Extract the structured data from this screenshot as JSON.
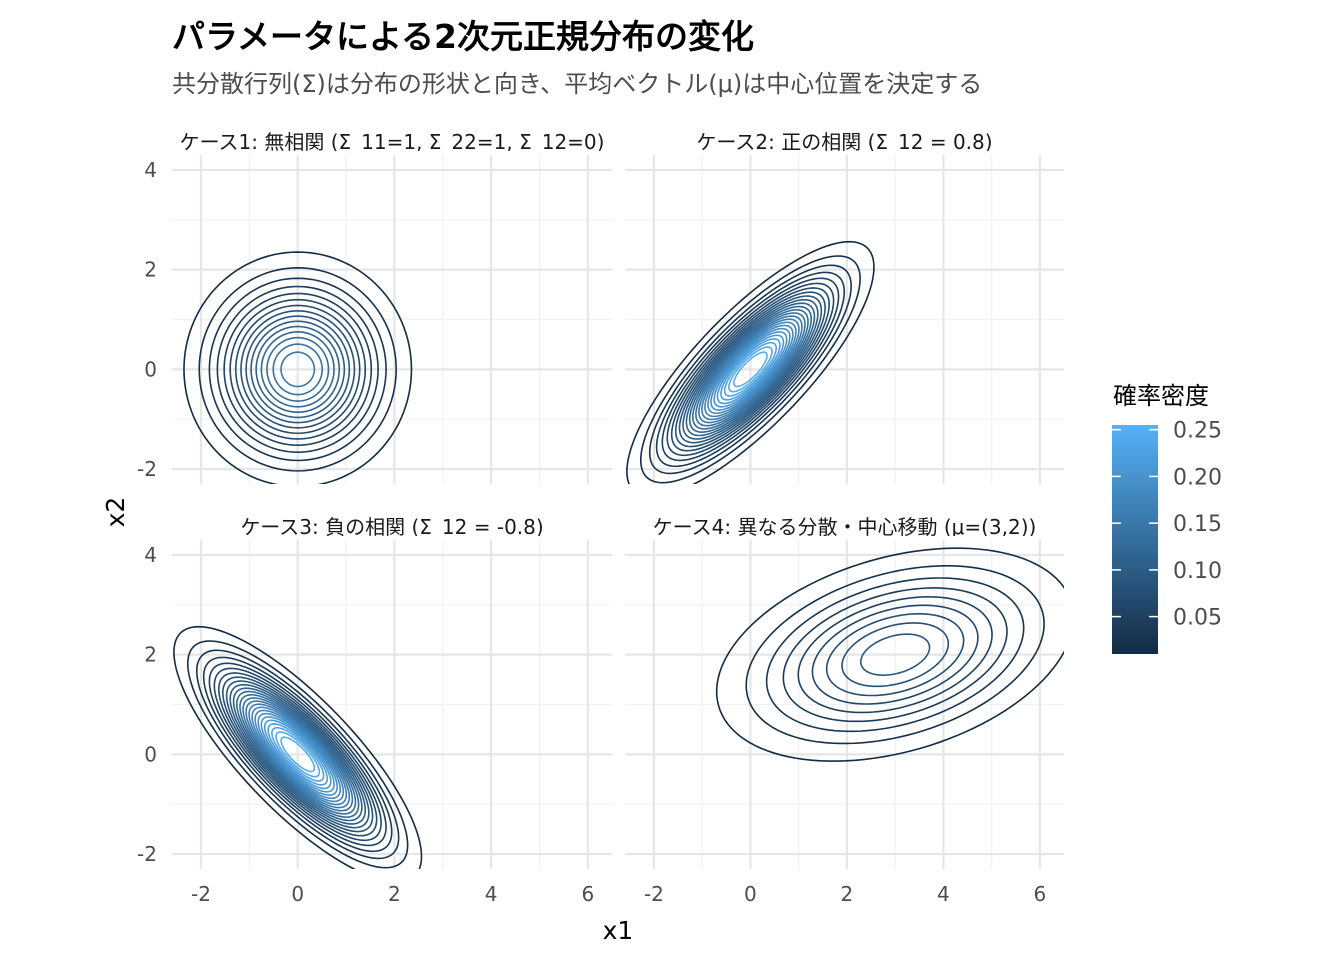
{
  "title": "パラメータによる2次元正規分布の変化",
  "subtitle": "共分散行列(Σ)は分布の形状と向き、平均ベクトル(μ)は中心位置を決定する",
  "chart_data": {
    "type": "contour",
    "x_label": "x1",
    "y_label": "x2",
    "xlim": [
      -2.6,
      6.5
    ],
    "ylim": [
      -2.3,
      4.3
    ],
    "x_ticks": [
      -2,
      0,
      2,
      4,
      6
    ],
    "y_ticks": [
      -2,
      0,
      2,
      4
    ],
    "grid": true,
    "legend": {
      "title": "確率密度",
      "position": "right",
      "ticks": [
        0.05,
        0.1,
        0.15,
        0.2,
        0.25
      ],
      "tick_labels": [
        "0.05",
        "0.10",
        "0.15",
        "0.20",
        "0.25"
      ],
      "range": [
        0.01,
        0.255
      ],
      "color_low": "#132B43",
      "color_high": "#56B1F7"
    },
    "contour_levels": [
      0.01,
      0.02,
      0.03,
      0.04,
      0.05,
      0.06,
      0.07,
      0.08,
      0.09,
      0.1,
      0.11,
      0.12,
      0.13,
      0.14,
      0.15,
      0.16,
      0.17,
      0.18,
      0.19,
      0.2,
      0.21,
      0.22,
      0.23,
      0.24,
      0.25
    ],
    "panels": [
      {
        "label": "ケース1: 無相関 (Σ_11=1, Σ_22=1, Σ_12=0)",
        "mu": [
          0,
          0
        ],
        "sigma": [
          [
            1,
            0
          ],
          [
            0,
            1
          ]
        ]
      },
      {
        "label": "ケース2: 正の相関 (Σ_12 = 0.8)",
        "mu": [
          0,
          0
        ],
        "sigma": [
          [
            1,
            0.8
          ],
          [
            0.8,
            1
          ]
        ]
      },
      {
        "label": "ケース3: 負の相関 (Σ_12 = -0.8)",
        "mu": [
          0,
          0
        ],
        "sigma": [
          [
            1,
            -0.8
          ],
          [
            -0.8,
            1
          ]
        ]
      },
      {
        "label": "ケース4: 異なる分散・中心移動 (μ=(3,2))",
        "mu": [
          3,
          2
        ],
        "sigma": [
          [
            3,
            0.6
          ],
          [
            0.6,
            1
          ]
        ]
      }
    ]
  }
}
